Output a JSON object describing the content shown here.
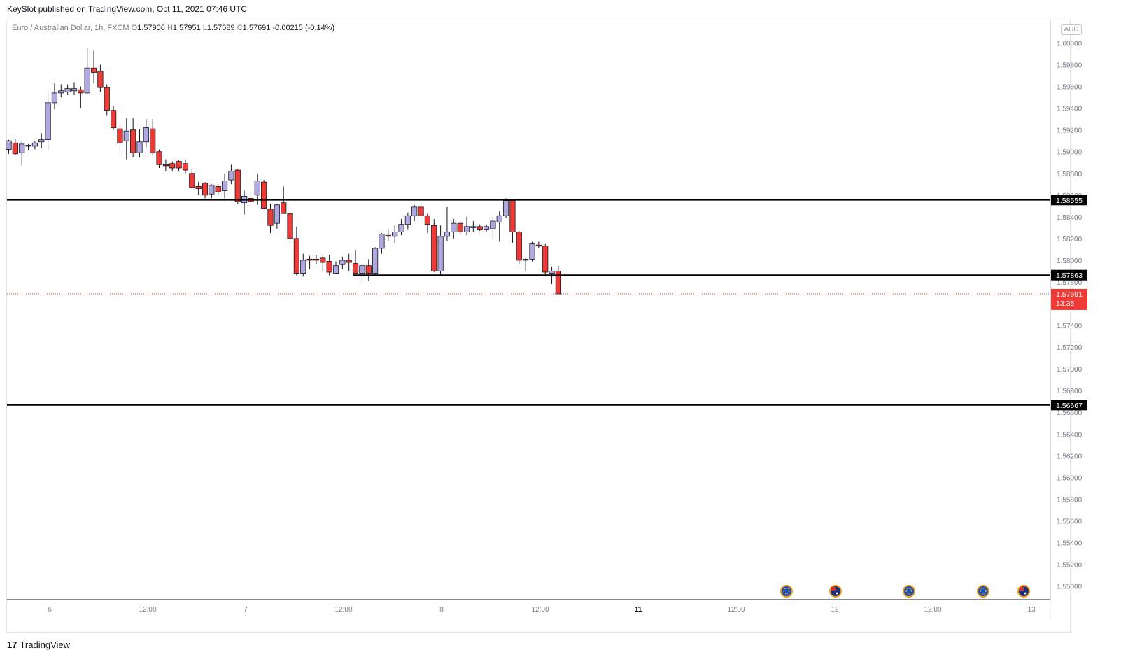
{
  "header": {
    "published": "KeySlot published on TradingView.com, Oct 11, 2021 07:46 UTC"
  },
  "legend": {
    "symbol": "Euro / Australian Dollar, 1h, FXCM",
    "o_label": "O",
    "o": "1.57906",
    "h_label": "H",
    "h": "1.57951",
    "l_label": "L",
    "l": "1.57689",
    "c_label": "C",
    "c": "1.57691",
    "change": "-0.00215 (-0.14%)"
  },
  "currency_badge": "AUD",
  "footer": {
    "brand": "TradingView",
    "logo": "17"
  },
  "colors": {
    "up": "#b2a8e0",
    "down": "#ef3b36",
    "price_line": "#ef3b36",
    "level": "#000000"
  },
  "chart_data": {
    "type": "candlestick",
    "title": "Euro / Australian Dollar, 1h, FXCM",
    "y_axis": {
      "ticks": [
        "1.60000",
        "1.59800",
        "1.59600",
        "1.59400",
        "1.59200",
        "1.59000",
        "1.58800",
        "1.58600",
        "1.58400",
        "1.58200",
        "1.58000",
        "1.57800",
        "1.57600",
        "1.57400",
        "1.57200",
        "1.57000",
        "1.56800",
        "1.56600",
        "1.56400",
        "1.56200",
        "1.56000",
        "1.55800",
        "1.55600",
        "1.55400",
        "1.55200",
        "1.55000"
      ],
      "range": [
        1.5492,
        1.6019
      ]
    },
    "x_axis": {
      "labels": [
        "6",
        "12:00",
        "7",
        "12:00",
        "8",
        "12:00",
        "11",
        "12:00",
        "12",
        "12:00",
        "13"
      ]
    },
    "levels": [
      {
        "value": 1.58555,
        "label": "1.58555",
        "extent": "full"
      },
      {
        "value": 1.57863,
        "label": "1.57863",
        "extent": "partial"
      },
      {
        "value": 1.56667,
        "label": "1.56667",
        "extent": "full"
      }
    ],
    "last_price": {
      "value": 1.57691,
      "label": "1.57691",
      "countdown": "13:35"
    },
    "candles": [
      {
        "o": 1.5902,
        "h": 1.5911,
        "l": 1.5898,
        "c": 1.591
      },
      {
        "o": 1.5908,
        "h": 1.5912,
        "l": 1.5897,
        "c": 1.5898
      },
      {
        "o": 1.5899,
        "h": 1.5909,
        "l": 1.5887,
        "c": 1.5907
      },
      {
        "o": 1.5905,
        "h": 1.5907,
        "l": 1.5901,
        "c": 1.5906
      },
      {
        "o": 1.5905,
        "h": 1.591,
        "l": 1.5902,
        "c": 1.5908
      },
      {
        "o": 1.5909,
        "h": 1.5917,
        "l": 1.5903,
        "c": 1.5911
      },
      {
        "o": 1.5911,
        "h": 1.5955,
        "l": 1.5901,
        "c": 1.5945
      },
      {
        "o": 1.5945,
        "h": 1.5963,
        "l": 1.5939,
        "c": 1.5954
      },
      {
        "o": 1.5954,
        "h": 1.5962,
        "l": 1.595,
        "c": 1.5956
      },
      {
        "o": 1.5955,
        "h": 1.5962,
        "l": 1.5952,
        "c": 1.5958
      },
      {
        "o": 1.5956,
        "h": 1.5964,
        "l": 1.5952,
        "c": 1.5958
      },
      {
        "o": 1.5957,
        "h": 1.596,
        "l": 1.594,
        "c": 1.5954
      },
      {
        "o": 1.5954,
        "h": 1.5995,
        "l": 1.5953,
        "c": 1.5977
      },
      {
        "o": 1.5977,
        "h": 1.5993,
        "l": 1.5963,
        "c": 1.5973
      },
      {
        "o": 1.5974,
        "h": 1.598,
        "l": 1.5955,
        "c": 1.5959
      },
      {
        "o": 1.5959,
        "h": 1.5962,
        "l": 1.5933,
        "c": 1.5938
      },
      {
        "o": 1.5938,
        "h": 1.5942,
        "l": 1.592,
        "c": 1.5922
      },
      {
        "o": 1.5921,
        "h": 1.5925,
        "l": 1.59,
        "c": 1.5908
      },
      {
        "o": 1.591,
        "h": 1.5931,
        "l": 1.5893,
        "c": 1.5919
      },
      {
        "o": 1.592,
        "h": 1.5931,
        "l": 1.5895,
        "c": 1.5899
      },
      {
        "o": 1.5899,
        "h": 1.5921,
        "l": 1.5895,
        "c": 1.5909
      },
      {
        "o": 1.5909,
        "h": 1.593,
        "l": 1.5904,
        "c": 1.5922
      },
      {
        "o": 1.5921,
        "h": 1.593,
        "l": 1.5897,
        "c": 1.5899
      },
      {
        "o": 1.59,
        "h": 1.5902,
        "l": 1.5885,
        "c": 1.5888
      },
      {
        "o": 1.5888,
        "h": 1.5893,
        "l": 1.5882,
        "c": 1.5887
      },
      {
        "o": 1.5889,
        "h": 1.5891,
        "l": 1.5882,
        "c": 1.5885
      },
      {
        "o": 1.5891,
        "h": 1.5892,
        "l": 1.5882,
        "c": 1.5885
      },
      {
        "o": 1.5889,
        "h": 1.5893,
        "l": 1.588,
        "c": 1.5883
      },
      {
        "o": 1.588,
        "h": 1.5884,
        "l": 1.5866,
        "c": 1.5867
      },
      {
        "o": 1.5868,
        "h": 1.5872,
        "l": 1.586,
        "c": 1.5866
      },
      {
        "o": 1.5871,
        "h": 1.5872,
        "l": 1.5857,
        "c": 1.586
      },
      {
        "o": 1.5861,
        "h": 1.587,
        "l": 1.5857,
        "c": 1.5869
      },
      {
        "o": 1.5868,
        "h": 1.587,
        "l": 1.586,
        "c": 1.5863
      },
      {
        "o": 1.5864,
        "h": 1.588,
        "l": 1.5857,
        "c": 1.5873
      },
      {
        "o": 1.5874,
        "h": 1.5888,
        "l": 1.587,
        "c": 1.5882
      },
      {
        "o": 1.5883,
        "h": 1.5884,
        "l": 1.5852,
        "c": 1.5854
      },
      {
        "o": 1.5853,
        "h": 1.5864,
        "l": 1.5842,
        "c": 1.5859
      },
      {
        "o": 1.5857,
        "h": 1.5862,
        "l": 1.5851,
        "c": 1.5854
      },
      {
        "o": 1.586,
        "h": 1.588,
        "l": 1.5851,
        "c": 1.5873
      },
      {
        "o": 1.5872,
        "h": 1.5874,
        "l": 1.5847,
        "c": 1.5848
      },
      {
        "o": 1.5847,
        "h": 1.5852,
        "l": 1.5825,
        "c": 1.5832
      },
      {
        "o": 1.5834,
        "h": 1.5852,
        "l": 1.5829,
        "c": 1.5851
      },
      {
        "o": 1.5853,
        "h": 1.5868,
        "l": 1.5847,
        "c": 1.5843
      },
      {
        "o": 1.5843,
        "h": 1.5844,
        "l": 1.5816,
        "c": 1.582
      },
      {
        "o": 1.582,
        "h": 1.5831,
        "l": 1.5786,
        "c": 1.5788
      },
      {
        "o": 1.5788,
        "h": 1.5806,
        "l": 1.5785,
        "c": 1.58
      },
      {
        "o": 1.5801,
        "h": 1.5804,
        "l": 1.5792,
        "c": 1.58
      },
      {
        "o": 1.5801,
        "h": 1.5805,
        "l": 1.5796,
        "c": 1.58
      },
      {
        "o": 1.5802,
        "h": 1.5805,
        "l": 1.579,
        "c": 1.5798
      },
      {
        "o": 1.5799,
        "h": 1.5805,
        "l": 1.5786,
        "c": 1.5789
      },
      {
        "o": 1.5788,
        "h": 1.5799,
        "l": 1.5787,
        "c": 1.5795
      },
      {
        "o": 1.5796,
        "h": 1.5803,
        "l": 1.5792,
        "c": 1.58
      },
      {
        "o": 1.58,
        "h": 1.5806,
        "l": 1.579,
        "c": 1.5798
      },
      {
        "o": 1.5797,
        "h": 1.5809,
        "l": 1.5787,
        "c": 1.5788
      },
      {
        "o": 1.5788,
        "h": 1.5796,
        "l": 1.578,
        "c": 1.5795
      },
      {
        "o": 1.5795,
        "h": 1.5801,
        "l": 1.5781,
        "c": 1.5788
      },
      {
        "o": 1.5788,
        "h": 1.5812,
        "l": 1.5786,
        "c": 1.5811
      },
      {
        "o": 1.5811,
        "h": 1.5825,
        "l": 1.5806,
        "c": 1.5824
      },
      {
        "o": 1.5823,
        "h": 1.5828,
        "l": 1.5818,
        "c": 1.5822
      },
      {
        "o": 1.5822,
        "h": 1.5832,
        "l": 1.5816,
        "c": 1.5826
      },
      {
        "o": 1.5826,
        "h": 1.5838,
        "l": 1.5823,
        "c": 1.5833
      },
      {
        "o": 1.5833,
        "h": 1.5844,
        "l": 1.5828,
        "c": 1.5841
      },
      {
        "o": 1.5841,
        "h": 1.5851,
        "l": 1.5836,
        "c": 1.5849
      },
      {
        "o": 1.5849,
        "h": 1.5852,
        "l": 1.5838,
        "c": 1.5841
      },
      {
        "o": 1.5841,
        "h": 1.5843,
        "l": 1.5825,
        "c": 1.5833
      },
      {
        "o": 1.5832,
        "h": 1.5838,
        "l": 1.5789,
        "c": 1.579
      },
      {
        "o": 1.579,
        "h": 1.5832,
        "l": 1.5786,
        "c": 1.5822
      },
      {
        "o": 1.5822,
        "h": 1.5849,
        "l": 1.5818,
        "c": 1.5826
      },
      {
        "o": 1.5826,
        "h": 1.5838,
        "l": 1.582,
        "c": 1.5834
      },
      {
        "o": 1.5834,
        "h": 1.5836,
        "l": 1.5824,
        "c": 1.5826
      },
      {
        "o": 1.5826,
        "h": 1.584,
        "l": 1.5823,
        "c": 1.5831
      },
      {
        "o": 1.583,
        "h": 1.5836,
        "l": 1.5826,
        "c": 1.5831
      },
      {
        "o": 1.5831,
        "h": 1.5833,
        "l": 1.5827,
        "c": 1.5828
      },
      {
        "o": 1.5828,
        "h": 1.5833,
        "l": 1.5826,
        "c": 1.5831
      },
      {
        "o": 1.5829,
        "h": 1.5841,
        "l": 1.582,
        "c": 1.5836
      },
      {
        "o": 1.5835,
        "h": 1.5845,
        "l": 1.5817,
        "c": 1.5841
      },
      {
        "o": 1.5841,
        "h": 1.5857,
        "l": 1.5839,
        "c": 1.5855
      },
      {
        "o": 1.5855,
        "h": 1.5856,
        "l": 1.5816,
        "c": 1.5826
      },
      {
        "o": 1.5826,
        "h": 1.5827,
        "l": 1.5796,
        "c": 1.58
      },
      {
        "o": 1.58,
        "h": 1.5802,
        "l": 1.579,
        "c": 1.5801
      },
      {
        "o": 1.5801,
        "h": 1.5817,
        "l": 1.5799,
        "c": 1.5815
      },
      {
        "o": 1.5814,
        "h": 1.5817,
        "l": 1.5811,
        "c": 1.5813
      },
      {
        "o": 1.5813,
        "h": 1.5815,
        "l": 1.5785,
        "c": 1.5789
      },
      {
        "o": 1.5788,
        "h": 1.5794,
        "l": 1.5778,
        "c": 1.579
      },
      {
        "o": 1.579,
        "h": 1.5795,
        "l": 1.5769,
        "c": 1.5769
      }
    ],
    "event_markers": [
      "eu-flag-icon",
      "au-flag-icon",
      "eu-flag-icon",
      "eu-flag-icon",
      "au-flag-icon"
    ]
  }
}
